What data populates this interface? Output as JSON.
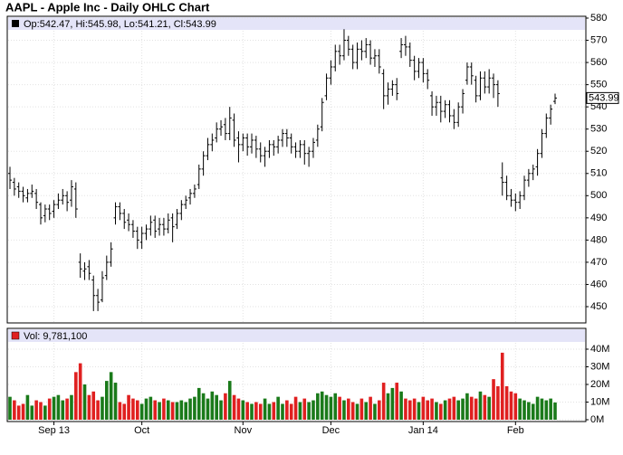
{
  "chart_data": {
    "type": "ohlc",
    "title": "AAPL - Apple Inc - Daily OHLC Chart",
    "ohlc_label": "Op:542.47, Hi:545.98, Lo:541.21, Cl:543.99",
    "volume_label": "Vol: 9,781,100",
    "open": [
      510,
      506,
      504,
      502,
      499,
      501,
      501,
      496,
      491,
      494,
      493,
      496,
      498,
      500,
      498,
      503,
      470,
      466,
      468,
      462,
      455,
      453,
      464,
      470,
      490,
      495,
      492,
      489,
      487,
      484,
      479,
      483,
      485,
      489,
      485,
      487,
      485,
      490,
      487,
      492,
      496,
      499,
      501,
      505,
      512,
      518,
      523,
      526,
      530,
      532,
      528,
      534,
      526,
      523,
      526,
      522,
      525,
      521,
      518,
      520,
      523,
      522,
      525,
      528,
      526,
      522,
      520,
      523,
      519,
      520,
      525,
      531,
      545,
      553,
      558,
      565,
      563,
      570,
      566,
      560,
      566,
      565,
      568,
      562,
      563,
      555,
      545,
      548,
      550,
      565,
      568,
      567,
      561,
      556,
      560,
      555,
      545,
      540,
      542,
      538,
      541,
      536,
      533,
      540,
      552,
      558,
      552,
      545,
      553,
      549,
      553,
      550,
      508,
      506,
      500,
      498,
      497,
      500,
      507,
      510,
      513,
      519,
      528,
      535,
      542.47
    ],
    "high": [
      513,
      508,
      506,
      504,
      503,
      505,
      503,
      497,
      496,
      496,
      498,
      501,
      503,
      502,
      507,
      506,
      474,
      470,
      471,
      464,
      458,
      466,
      473,
      479,
      497,
      497,
      494,
      492,
      489,
      486,
      486,
      487,
      491,
      491,
      490,
      490,
      492,
      492,
      494,
      498,
      500,
      503,
      505,
      514,
      520,
      526,
      528,
      533,
      534,
      535,
      540,
      537,
      529,
      528,
      528,
      528,
      527,
      524,
      522,
      525,
      525,
      527,
      530,
      530,
      528,
      524,
      525,
      525,
      522,
      526,
      532,
      544,
      555,
      561,
      568,
      568,
      575,
      572,
      568,
      569,
      570,
      571,
      570,
      566,
      566,
      557,
      551,
      552,
      553,
      571,
      572,
      569,
      563,
      562,
      562,
      557,
      547,
      545,
      545,
      543,
      543,
      539,
      542,
      548,
      560,
      560,
      554,
      556,
      556,
      557,
      555,
      552,
      515,
      509,
      503,
      501,
      502,
      509,
      512,
      514,
      521,
      530,
      537,
      541,
      545.98
    ],
    "low": [
      503,
      500,
      499,
      497,
      497,
      499,
      494,
      487,
      488,
      489,
      490,
      494,
      496,
      493,
      495,
      490,
      463,
      462,
      462,
      448,
      448,
      452,
      462,
      468,
      487,
      489,
      485,
      484,
      481,
      476,
      476,
      480,
      482,
      481,
      482,
      482,
      483,
      479,
      485,
      489,
      494,
      496,
      499,
      503,
      509,
      516,
      520,
      524,
      527,
      525,
      525,
      522,
      515,
      520,
      518,
      519,
      517,
      515,
      513,
      517,
      518,
      519,
      522,
      522,
      519,
      517,
      517,
      514,
      513,
      517,
      522,
      529,
      543,
      550,
      556,
      559,
      561,
      563,
      557,
      557,
      561,
      562,
      559,
      558,
      555,
      539,
      541,
      545,
      543,
      562,
      563,
      558,
      552,
      553,
      551,
      548,
      536,
      536,
      533,
      535,
      533,
      530,
      531,
      537,
      550,
      550,
      542,
      543,
      546,
      546,
      544,
      540,
      500,
      498,
      495,
      493,
      494,
      498,
      504,
      507,
      509,
      517,
      526,
      532,
      541.21
    ],
    "close": [
      507,
      503,
      502,
      500,
      501,
      502,
      497,
      490,
      494,
      492,
      496,
      498,
      500,
      497,
      504,
      494,
      467,
      467,
      465,
      455,
      452,
      463,
      470,
      476,
      495,
      492,
      488,
      487,
      484,
      480,
      483,
      485,
      488,
      484,
      487,
      485,
      489,
      486,
      492,
      496,
      498,
      501,
      503,
      512,
      518,
      523,
      525,
      530,
      531,
      528,
      535,
      525,
      523,
      526,
      522,
      525,
      521,
      518,
      520,
      523,
      522,
      525,
      528,
      526,
      522,
      520,
      523,
      519,
      520,
      524,
      530,
      542,
      553,
      558,
      565,
      563,
      570,
      566,
      560,
      566,
      565,
      568,
      562,
      563,
      558,
      545,
      548,
      550,
      546,
      568,
      567,
      561,
      556,
      560,
      555,
      552,
      540,
      542,
      538,
      541,
      536,
      533,
      540,
      546,
      558,
      554,
      545,
      553,
      549,
      553,
      550,
      546,
      506,
      500,
      498,
      497,
      500,
      507,
      510,
      512,
      519,
      528,
      535,
      539,
      543.99
    ],
    "volume": [
      13,
      11,
      8,
      9,
      14,
      8,
      11,
      10,
      8,
      12,
      13,
      14,
      11,
      12,
      14,
      27,
      32,
      20,
      14,
      16,
      11,
      13,
      22,
      27,
      21,
      10,
      9,
      14,
      12,
      11,
      9,
      12,
      13,
      11,
      10,
      12,
      11,
      10,
      10,
      11,
      10,
      12,
      13,
      18,
      15,
      12,
      16,
      14,
      11,
      15,
      22,
      14,
      12,
      11,
      10,
      9,
      10,
      9,
      12,
      9,
      10,
      13,
      9,
      11,
      9,
      13,
      10,
      12,
      10,
      11,
      15,
      16,
      14,
      13,
      15,
      13,
      11,
      12,
      10,
      9,
      12,
      10,
      13,
      9,
      11,
      21,
      15,
      18,
      21,
      16,
      12,
      11,
      12,
      10,
      13,
      11,
      12,
      10,
      9,
      11,
      12,
      13,
      11,
      12,
      15,
      13,
      12,
      16,
      14,
      13,
      23,
      19,
      38,
      19,
      16,
      15,
      12,
      11,
      10,
      9,
      13,
      12,
      11,
      12,
      9.7811
    ],
    "up_color": "#1a7a1a",
    "down_color": "#e02020",
    "bar_color": "#000000",
    "xlim": [
      0,
      124
    ],
    "xticks": [
      {
        "value": 10,
        "label": "Sep 13"
      },
      {
        "value": 30,
        "label": "Oct"
      },
      {
        "value": 53,
        "label": "Nov"
      },
      {
        "value": 73,
        "label": "Dec"
      },
      {
        "value": 94,
        "label": "Jan 14"
      },
      {
        "value": 115,
        "label": "Feb"
      }
    ],
    "ylim": [
      450,
      580
    ],
    "yticks": [
      450,
      460,
      470,
      480,
      490,
      500,
      510,
      520,
      530,
      540,
      550,
      560,
      570,
      580
    ],
    "vol_ylim": [
      0,
      40
    ],
    "vol_yticks": [
      {
        "value": 0,
        "label": "0M"
      },
      {
        "value": 10,
        "label": "10M"
      },
      {
        "value": 20,
        "label": "20M"
      },
      {
        "value": 30,
        "label": "30M"
      },
      {
        "value": 40,
        "label": "40M"
      }
    ],
    "grid": true
  }
}
